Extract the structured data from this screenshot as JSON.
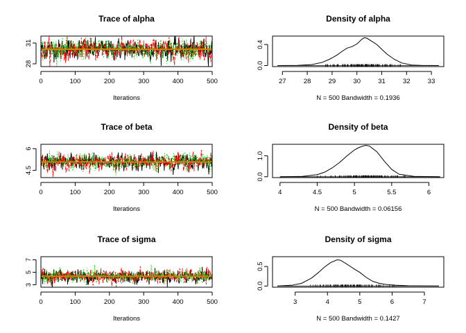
{
  "chart_data": [
    {
      "type": "line",
      "panel": "trace",
      "title": "Trace of alpha",
      "xlabel": "Iterations",
      "ylabel": "",
      "xlim": [
        0,
        500
      ],
      "ylim": [
        27.6,
        32.0
      ],
      "xticks": [
        0,
        100,
        200,
        300,
        400,
        500
      ],
      "yticks": [
        28,
        31
      ],
      "center": 30.1,
      "spread": 0.75,
      "n": 500,
      "series": [
        {
          "color": "#000000",
          "dash": "none"
        },
        {
          "color": "#ff0000",
          "dash": "5,2"
        },
        {
          "color": "#00cd00",
          "dash": "1.5,2.5"
        }
      ],
      "mean_line_color": "#cd8500"
    },
    {
      "type": "area",
      "panel": "density",
      "title": "Density of alpha",
      "xlabel": "N = 500   Bandwidth = 0.1936",
      "xlim": [
        26.6,
        33.5
      ],
      "ylim": [
        -0.02,
        0.56
      ],
      "xticks": [
        27,
        28,
        29,
        30,
        31,
        32,
        33
      ],
      "yticks": [
        0.0,
        0.4
      ],
      "curve": {
        "x": [
          26.8,
          27.6,
          28.2,
          28.6,
          28.9,
          29.2,
          29.4,
          29.6,
          29.8,
          30.0,
          30.2,
          30.3,
          30.4,
          30.6,
          30.8,
          31.0,
          31.2,
          31.5,
          31.8,
          32.2,
          32.6,
          33.3
        ],
        "y": [
          0.0,
          0.003,
          0.02,
          0.06,
          0.12,
          0.2,
          0.27,
          0.33,
          0.36,
          0.41,
          0.5,
          0.53,
          0.52,
          0.46,
          0.4,
          0.31,
          0.22,
          0.12,
          0.05,
          0.01,
          0.003,
          0.0
        ]
      },
      "rug_range": [
        28.0,
        32.2
      ]
    },
    {
      "type": "line",
      "panel": "trace",
      "title": "Trace of beta",
      "xlabel": "Iterations",
      "ylabel": "",
      "xlim": [
        0,
        500
      ],
      "ylim": [
        4.0,
        6.3
      ],
      "xticks": [
        0,
        100,
        200,
        300,
        400,
        500
      ],
      "yticks": [
        4.5,
        6.0
      ],
      "center": 5.08,
      "spread": 0.28,
      "n": 500,
      "series": [
        {
          "color": "#000000",
          "dash": "none"
        },
        {
          "color": "#ff0000",
          "dash": "5,2"
        },
        {
          "color": "#00cd00",
          "dash": "1.5,2.5"
        }
      ],
      "mean_line_color": "#cd8500"
    },
    {
      "type": "area",
      "panel": "density",
      "title": "Density of beta",
      "xlabel": "N = 500   Bandwidth = 0.06156",
      "xlim": [
        3.9,
        6.2
      ],
      "ylim": [
        -0.04,
        1.55
      ],
      "xticks": [
        4.0,
        4.5,
        5.0,
        5.5,
        6.0
      ],
      "yticks": [
        0.0,
        1.0
      ],
      "curve": {
        "x": [
          4.0,
          4.3,
          4.5,
          4.6,
          4.7,
          4.8,
          4.9,
          5.0,
          5.05,
          5.1,
          5.15,
          5.2,
          5.3,
          5.4,
          5.5,
          5.6,
          5.8,
          6.15
        ],
        "y": [
          0.0,
          0.02,
          0.1,
          0.22,
          0.42,
          0.68,
          1.0,
          1.28,
          1.38,
          1.45,
          1.5,
          1.47,
          1.2,
          0.75,
          0.35,
          0.12,
          0.02,
          0.0
        ]
      },
      "rug_range": [
        4.4,
        5.9
      ]
    },
    {
      "type": "line",
      "panel": "trace",
      "title": "Trace of sigma",
      "xlabel": "Iterations",
      "ylabel": "",
      "xlim": [
        0,
        500
      ],
      "ylim": [
        2.6,
        7.5
      ],
      "xticks": [
        0,
        100,
        200,
        300,
        400,
        500
      ],
      "yticks": [
        3,
        5,
        7
      ],
      "center": 4.35,
      "spread": 0.55,
      "n": 500,
      "series": [
        {
          "color": "#000000",
          "dash": "none"
        },
        {
          "color": "#ff0000",
          "dash": "5,2"
        },
        {
          "color": "#00cd00",
          "dash": "1.5,2.5"
        }
      ],
      "mean_line_color": "#cd8500"
    },
    {
      "type": "area",
      "panel": "density",
      "title": "Density of sigma",
      "xlabel": "N = 500   Bandwidth = 0.1427",
      "xlim": [
        2.3,
        7.6
      ],
      "ylim": [
        -0.03,
        0.75
      ],
      "xticks": [
        3,
        4,
        5,
        6,
        7
      ],
      "yticks": [
        0.0,
        0.5
      ],
      "curve": {
        "x": [
          2.45,
          2.9,
          3.2,
          3.5,
          3.7,
          3.9,
          4.1,
          4.3,
          4.4,
          4.6,
          4.8,
          5.0,
          5.2,
          5.4,
          5.6,
          5.8,
          6.1,
          6.5,
          7.0,
          7.45
        ],
        "y": [
          0.0,
          0.02,
          0.07,
          0.2,
          0.33,
          0.48,
          0.6,
          0.67,
          0.66,
          0.56,
          0.45,
          0.35,
          0.22,
          0.12,
          0.07,
          0.04,
          0.02,
          0.008,
          0.003,
          0.0
        ]
      },
      "rug_range": [
        3.0,
        6.5
      ]
    }
  ]
}
